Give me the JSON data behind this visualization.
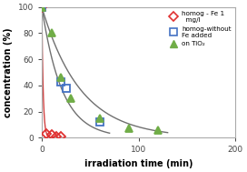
{
  "homog_fe": {
    "x": [
      0,
      5,
      10,
      15,
      20
    ],
    "y": [
      100,
      3,
      2,
      1,
      1
    ],
    "color": "#e03030",
    "marker": "D",
    "markersize": 5,
    "label": "homog - Fe 1\n  mg/l"
  },
  "homog_no_fe": {
    "x": [
      0,
      20,
      25,
      60
    ],
    "y": [
      100,
      43,
      38,
      12
    ],
    "color": "#4472c4",
    "marker": "s",
    "markersize": 6,
    "label": "homog-without\nFe added"
  },
  "tio2": {
    "x": [
      0,
      10,
      20,
      30,
      60,
      90,
      120
    ],
    "y": [
      100,
      80,
      46,
      30,
      15,
      7,
      6
    ],
    "color": "#70ad47",
    "marker": "^",
    "markersize": 6,
    "label": "on TiO₂"
  },
  "xlabel": "irradiation time (min)",
  "ylabel": "concentration (%)",
  "xlim": [
    0,
    200
  ],
  "ylim": [
    0,
    100
  ],
  "xticks": [
    0,
    100,
    200
  ],
  "yticks": [
    0,
    20,
    40,
    60,
    80,
    100
  ],
  "background_color": "#ffffff",
  "fit_color_red": "#d04040",
  "fit_color_gray": "#707070"
}
